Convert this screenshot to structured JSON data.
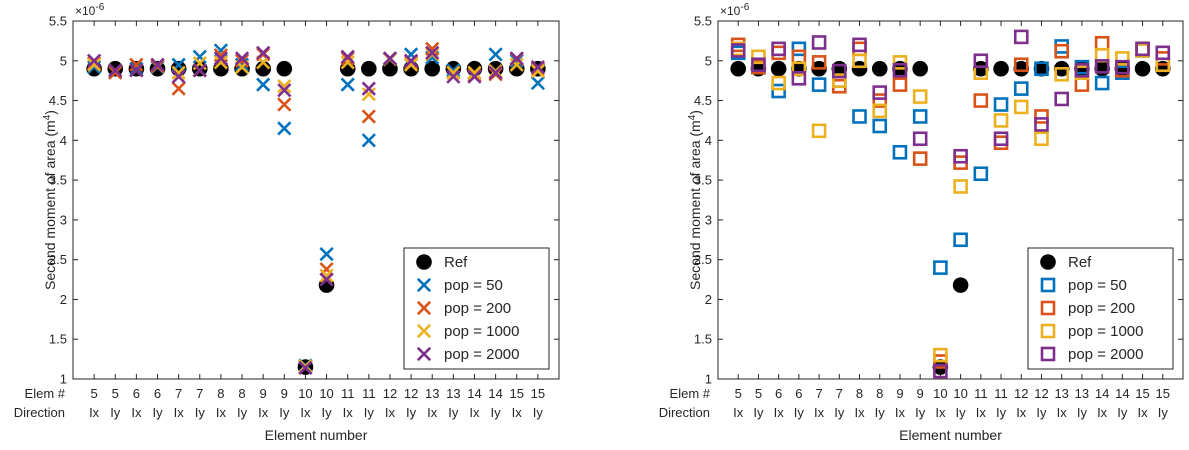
{
  "figure": {
    "colors": {
      "ref": "#000000",
      "pop50": "#0072BD",
      "pop200": "#D95319",
      "pop1000": "#EDB120",
      "pop2000": "#7E2F8E",
      "axis": "#262626"
    }
  },
  "chart_data": [
    {
      "type": "scatter",
      "marker": "x",
      "xlabel": "Element number",
      "ylabel": "Second moment of area (m",
      "ylabel_sup": "4",
      "ylabel_close": ")",
      "exponent_base": "×10",
      "exponent_power": "-6",
      "row_labels": [
        "Elem #",
        "Direction"
      ],
      "categories": [
        "5 Ix",
        "5 Iy",
        "6 Ix",
        "6 Iy",
        "7 Ix",
        "7 Iy",
        "8 Ix",
        "8 Iy",
        "9 Ix",
        "9 Iy",
        "10 Ix",
        "10 Iy",
        "11 Ix",
        "11 Iy",
        "12 Ix",
        "12 Iy",
        "13 Ix",
        "13 Iy",
        "14 Ix",
        "14 Iy",
        "15 Ix",
        "15 Iy"
      ],
      "elem_labels": [
        "5",
        "5",
        "6",
        "6",
        "7",
        "7",
        "8",
        "8",
        "9",
        "9",
        "10",
        "10",
        "11",
        "11",
        "12",
        "12",
        "13",
        "13",
        "14",
        "14",
        "15",
        "15"
      ],
      "dir_labels": [
        "Ix",
        "Iy",
        "Ix",
        "Iy",
        "Ix",
        "Iy",
        "Ix",
        "Iy",
        "Ix",
        "Iy",
        "Ix",
        "Iy",
        "Ix",
        "Iy",
        "Ix",
        "Iy",
        "Ix",
        "Iy",
        "Ix",
        "Iy",
        "Ix",
        "Iy"
      ],
      "ylim": [
        1,
        5.5
      ],
      "yticks": [
        "1",
        "1.5",
        "2",
        "2.5",
        "3",
        "3.5",
        "4",
        "4.5",
        "5",
        "5.5"
      ],
      "ytick_values": [
        1,
        1.5,
        2,
        2.5,
        3,
        3.5,
        4,
        4.5,
        5,
        5.5
      ],
      "grid": false,
      "legend_position": "bottom-right",
      "series": [
        {
          "name": "Ref",
          "values": [
            4.9,
            4.9,
            4.9,
            4.9,
            4.9,
            4.9,
            4.9,
            4.9,
            4.9,
            4.9,
            1.15,
            2.18,
            4.9,
            4.9,
            4.9,
            4.9,
            4.9,
            4.9,
            4.9,
            4.9,
            4.9,
            4.9
          ]
        },
        {
          "name": "pop = 50",
          "values": [
            4.92,
            4.86,
            4.9,
            4.92,
            4.95,
            5.05,
            5.13,
            4.95,
            4.7,
            4.15,
            1.17,
            2.57,
            4.7,
            4.0,
            5.02,
            5.08,
            5.04,
            4.88,
            4.85,
            5.08,
            5.0,
            4.72
          ]
        },
        {
          "name": "pop = 200",
          "values": [
            4.97,
            4.85,
            4.95,
            4.93,
            4.65,
            4.88,
            5.07,
            5.0,
            5.08,
            4.45,
            1.15,
            2.38,
            5.03,
            4.3,
            5.03,
            4.98,
            5.15,
            4.85,
            4.82,
            4.83,
            5.02,
            4.9
          ]
        },
        {
          "name": "pop = 1000",
          "values": [
            4.95,
            4.88,
            4.88,
            4.95,
            4.85,
            4.97,
            4.98,
            4.92,
            4.98,
            4.68,
            1.16,
            2.3,
            4.98,
            4.58,
            5.02,
            4.95,
            5.08,
            4.85,
            4.85,
            4.87,
            4.95,
            4.87
          ]
        },
        {
          "name": "pop = 2000",
          "values": [
            5.0,
            4.88,
            4.88,
            4.95,
            4.8,
            4.88,
            5.03,
            5.03,
            5.1,
            4.63,
            1.14,
            2.25,
            5.05,
            4.65,
            5.03,
            5.0,
            5.1,
            4.8,
            4.8,
            4.85,
            5.03,
            4.92
          ]
        }
      ]
    },
    {
      "type": "scatter",
      "marker": "square",
      "xlabel": "Element number",
      "ylabel": "Second moment of area (m",
      "ylabel_sup": "4",
      "ylabel_close": ")",
      "exponent_base": "×10",
      "exponent_power": "-6",
      "row_labels": [
        "Elem #",
        "Direction"
      ],
      "categories": [
        "5 Ix",
        "5 Iy",
        "6 Ix",
        "6 Iy",
        "7 Ix",
        "7 Iy",
        "8 Ix",
        "8 Iy",
        "9 Ix",
        "9 Iy",
        "10 Ix",
        "10 Iy",
        "11 Ix",
        "11 Iy",
        "12 Ix",
        "12 Iy",
        "13 Ix",
        "13 Iy",
        "14 Ix",
        "14 Iy",
        "15 Ix",
        "15 Iy"
      ],
      "elem_labels": [
        "5",
        "5",
        "6",
        "6",
        "7",
        "7",
        "8",
        "8",
        "9",
        "9",
        "10",
        "10",
        "11",
        "11",
        "12",
        "12",
        "13",
        "13",
        "14",
        "14",
        "15",
        "15"
      ],
      "dir_labels": [
        "Ix",
        "Iy",
        "Ix",
        "Iy",
        "Ix",
        "Iy",
        "Ix",
        "Iy",
        "Ix",
        "Iy",
        "Ix",
        "Iy",
        "Ix",
        "Iy",
        "Ix",
        "Iy",
        "Ix",
        "Iy",
        "Ix",
        "Iy",
        "Ix",
        "Iy"
      ],
      "ylim": [
        1,
        5.5
      ],
      "yticks": [
        "1",
        "1.5",
        "2",
        "2.5",
        "3",
        "3.5",
        "4",
        "4.5",
        "5",
        "5.5"
      ],
      "ytick_values": [
        1,
        1.5,
        2,
        2.5,
        3,
        3.5,
        4,
        4.5,
        5,
        5.5
      ],
      "grid": false,
      "legend_position": "bottom-right",
      "series": [
        {
          "name": "Ref",
          "values": [
            4.9,
            4.9,
            4.9,
            4.9,
            4.9,
            4.9,
            4.9,
            4.9,
            4.9,
            4.9,
            1.15,
            2.18,
            4.9,
            4.9,
            4.9,
            4.9,
            4.9,
            4.9,
            4.9,
            4.9,
            4.9,
            4.9
          ]
        },
        {
          "name": "pop = 50",
          "values": [
            5.1,
            4.92,
            4.62,
            5.15,
            4.7,
            4.75,
            4.3,
            4.18,
            3.85,
            4.3,
            2.4,
            2.75,
            3.58,
            4.45,
            4.65,
            4.9,
            5.18,
            4.92,
            4.72,
            4.85,
            5.13,
            4.95
          ]
        },
        {
          "name": "pop = 200",
          "values": [
            5.2,
            4.92,
            5.1,
            5.05,
            4.98,
            4.68,
            5.15,
            4.5,
            4.7,
            3.77,
            1.22,
            3.72,
            4.5,
            3.97,
            4.95,
            4.3,
            5.12,
            4.7,
            5.22,
            4.88,
            5.15,
            5.03
          ]
        },
        {
          "name": "pop = 1000",
          "values": [
            5.15,
            5.05,
            4.72,
            4.9,
            4.12,
            4.75,
            5.0,
            4.37,
            4.98,
            4.55,
            1.3,
            3.42,
            4.85,
            4.25,
            4.42,
            4.02,
            4.83,
            4.85,
            5.07,
            5.03,
            5.13,
            4.95
          ]
        },
        {
          "name": "pop = 2000",
          "values": [
            5.13,
            4.95,
            5.15,
            4.78,
            5.23,
            4.87,
            5.2,
            4.6,
            4.88,
            4.02,
            1.1,
            3.8,
            5.0,
            4.02,
            5.3,
            4.2,
            4.52,
            4.88,
            4.93,
            4.92,
            5.15,
            5.1
          ]
        }
      ]
    }
  ]
}
